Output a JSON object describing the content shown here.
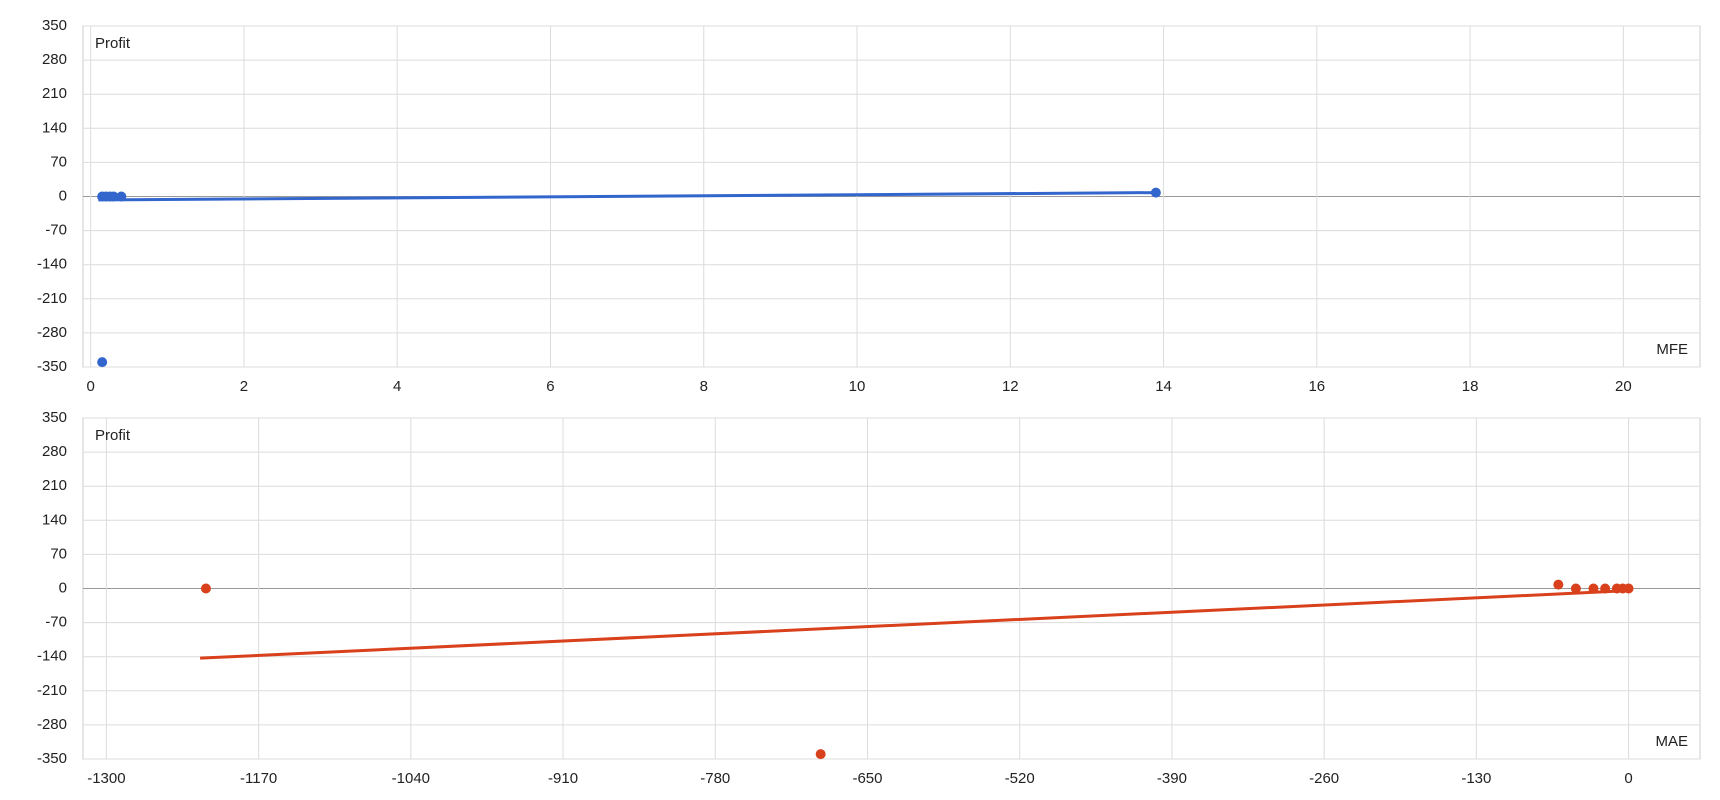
{
  "chart_data": [
    {
      "type": "scatter",
      "y_label": "Profit",
      "x_label": "MFE",
      "xlim": [
        -0.1,
        21
      ],
      "xticks": [
        0,
        2,
        4,
        6,
        8,
        10,
        12,
        14,
        16,
        18,
        20
      ],
      "ylim": [
        -350,
        350
      ],
      "yticks": [
        -350,
        -280,
        -210,
        -140,
        -70,
        0,
        70,
        140,
        210,
        280,
        350
      ],
      "grid": true,
      "series": [
        {
          "color": "#3366cc",
          "x": [
            0.15,
            0.2,
            0.25,
            0.3,
            0.4,
            0.15,
            13.9
          ],
          "values": [
            0,
            0,
            0,
            0,
            0,
            -340,
            8
          ]
        }
      ],
      "trendline": {
        "color": "#3366cc",
        "x": [
          0.1,
          13.9
        ],
        "values": [
          -7,
          8
        ]
      }
    },
    {
      "type": "scatter",
      "y_label": "Profit",
      "x_label": "MAE",
      "xlim": [
        -1320,
        61
      ],
      "xticks": [
        -1300,
        -1170,
        -1040,
        -910,
        -780,
        -650,
        -520,
        -390,
        -260,
        -130,
        0
      ],
      "ylim": [
        -350,
        350
      ],
      "yticks": [
        -350,
        -280,
        -210,
        -140,
        -70,
        0,
        70,
        140,
        210,
        280,
        350
      ],
      "grid": true,
      "series": [
        {
          "color": "#d9401c",
          "x": [
            -1215,
            -690,
            -60,
            -45,
            -30,
            -20,
            -10,
            -5,
            0
          ],
          "values": [
            0,
            -340,
            8,
            0,
            0,
            0,
            0,
            0,
            0
          ]
        }
      ],
      "trendline": {
        "color": "#d9401c",
        "x": [
          -1220,
          -5
        ],
        "values": [
          -143,
          -5
        ]
      }
    }
  ]
}
